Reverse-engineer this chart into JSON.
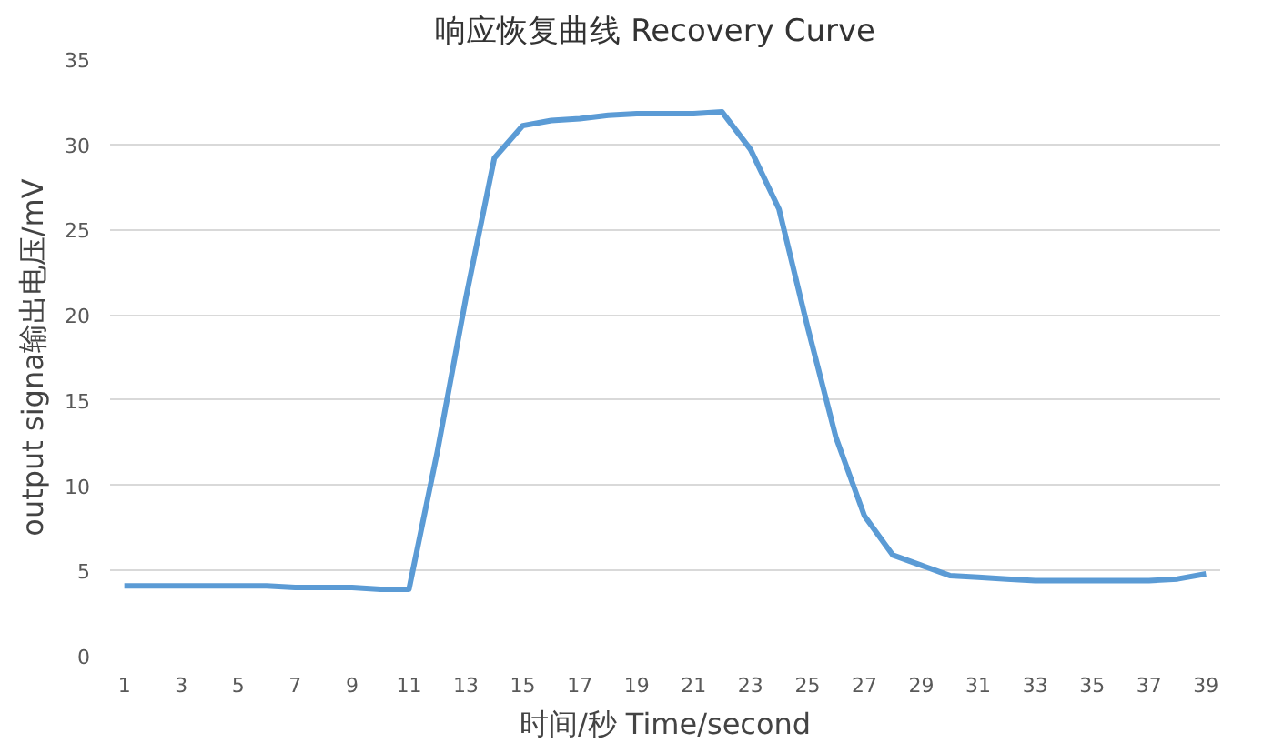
{
  "chart_data": {
    "type": "line",
    "title": "响应恢复曲线   Recovery Curve",
    "xlabel": "时间/秒 Time/second",
    "ylabel": "output signa输出电压/mV",
    "x": [
      1,
      2,
      3,
      4,
      5,
      6,
      7,
      8,
      9,
      10,
      11,
      12,
      13,
      14,
      15,
      16,
      17,
      18,
      19,
      20,
      21,
      22,
      23,
      24,
      25,
      26,
      27,
      28,
      29,
      30,
      31,
      32,
      33,
      34,
      35,
      36,
      37,
      38,
      39
    ],
    "series": [
      {
        "color": "#5b9bd5",
        "values": [
          4.1,
          4.1,
          4.1,
          4.1,
          4.1,
          4.1,
          4.0,
          4.0,
          4.0,
          3.9,
          3.9,
          12,
          21,
          29.2,
          31.1,
          31.4,
          31.5,
          31.7,
          31.8,
          31.8,
          31.8,
          31.9,
          29.7,
          26.2,
          19.3,
          12.8,
          8.2,
          5.9,
          5.3,
          4.7,
          4.6,
          4.5,
          4.4,
          4.4,
          4.4,
          4.4,
          4.4,
          4.5,
          4.8
        ]
      }
    ],
    "xlim": [
      0.5,
      39.5
    ],
    "xticks": [
      1,
      3,
      5,
      7,
      9,
      11,
      13,
      15,
      17,
      19,
      21,
      23,
      25,
      27,
      29,
      31,
      33,
      35,
      37,
      39
    ],
    "ylim": [
      0,
      35
    ],
    "yticks": [
      0,
      5,
      10,
      15,
      20,
      25,
      30,
      35
    ],
    "grid": "y",
    "marker": "none",
    "line_style": "solid"
  }
}
